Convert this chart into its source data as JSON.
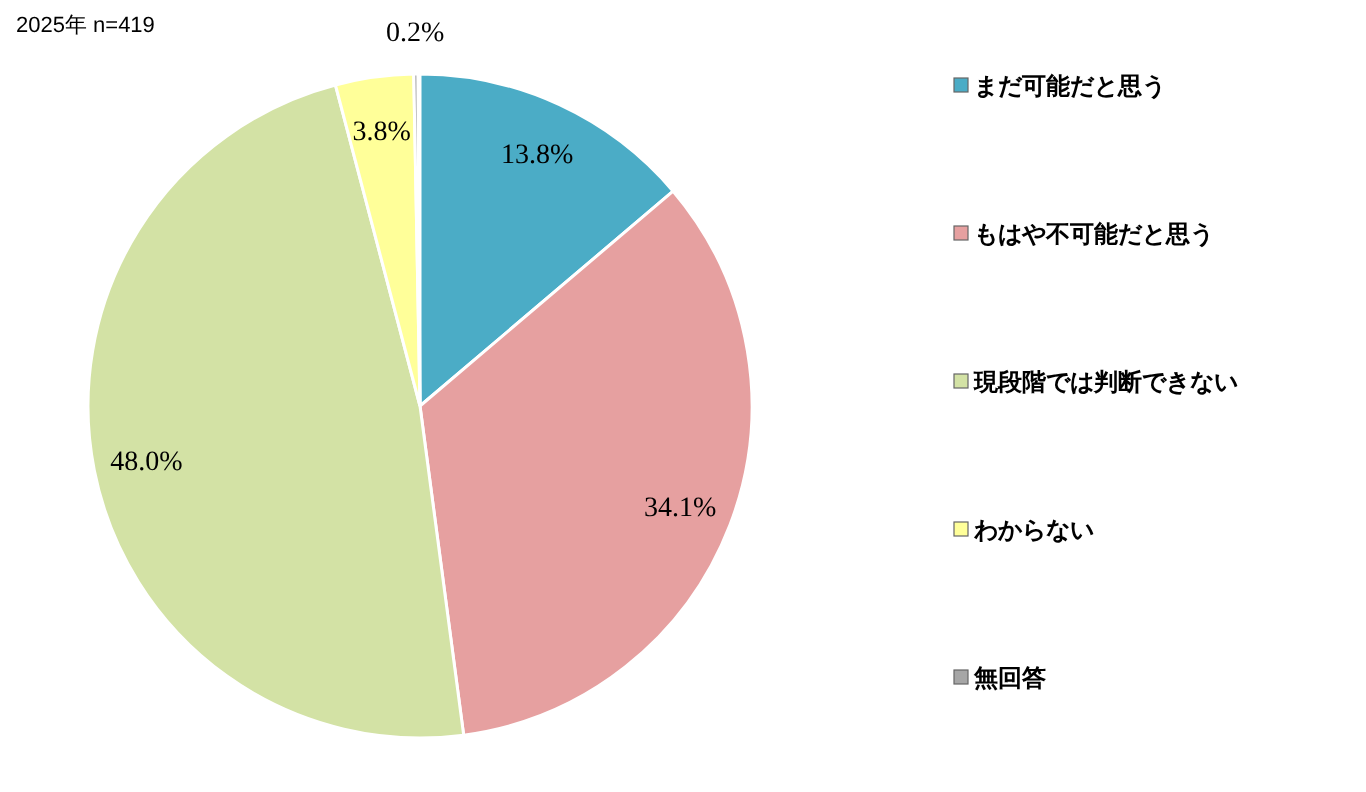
{
  "chart_data": {
    "type": "pie",
    "title": "2025年  n=419",
    "categories": [
      "まだ可能だと思う",
      "もはや不可能だと思う",
      "現段階では判断できない",
      "わからない",
      "無回答"
    ],
    "values": [
      13.8,
      34.1,
      48.0,
      3.8,
      0.2
    ],
    "colors": [
      "#4bacc6",
      "#e6a0a0",
      "#d3e2a5",
      "#ffff99",
      "#a6a6a6"
    ],
    "value_labels": [
      "13.8%",
      "34.1%",
      "48.0%",
      "3.8%",
      "0.2%"
    ],
    "legend": "right"
  }
}
